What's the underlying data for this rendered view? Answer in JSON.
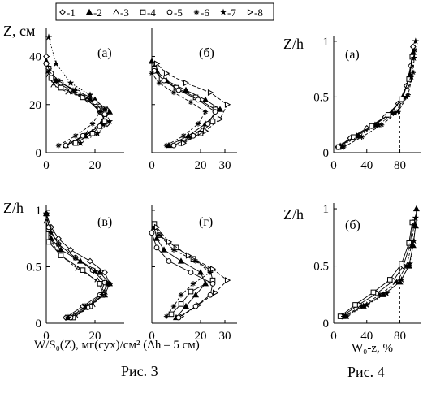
{
  "legend": {
    "items": [
      {
        "num": "-1",
        "marker": "diamond"
      },
      {
        "num": "-2",
        "marker": "triangle-filled"
      },
      {
        "num": "-3",
        "marker": "caret-open"
      },
      {
        "num": "-4",
        "marker": "square"
      },
      {
        "num": "-5",
        "marker": "hexagon"
      },
      {
        "num": "-6",
        "marker": "star"
      },
      {
        "num": "-7",
        "marker": "star-filled"
      },
      {
        "num": "-8",
        "marker": "triangle-right"
      }
    ]
  },
  "fig3": {
    "ylabel_top": "Z, см",
    "ylabel_bottom": "Z/h",
    "xlabel": "W/S₀(Z), мг(сух)/см² (Δh – 5 см)",
    "caption": "Рис. 3",
    "yticks_top": [
      "0",
      "20",
      "40"
    ],
    "yticks_bottom": [
      "0",
      "0.5",
      "1"
    ],
    "xticks_left": [
      "0",
      "20"
    ],
    "xticks_right": [
      "0",
      "20",
      "30"
    ],
    "panel_labels": [
      "(а)",
      "(б)",
      "(в)",
      "(г)"
    ]
  },
  "fig4": {
    "ylabel": "Z/h",
    "xlabel": "W₀-z, %",
    "caption": "Рис. 4",
    "yticks": [
      "0",
      "0.5",
      "1"
    ],
    "xticks": [
      "0",
      "40",
      "80"
    ],
    "panel_labels": [
      "(а)",
      "(б)"
    ]
  },
  "chart_data": [
    {
      "type": "line",
      "panel": "Рис. 3 (а)",
      "ylabel": "Z, см",
      "ylim": [
        0,
        52
      ],
      "xlim": [
        0,
        32
      ],
      "series": [
        {
          "marker": "diamond",
          "x": [
            25,
            22,
            17,
            10,
            3,
            1,
            0
          ],
          "y": [
            12,
            17,
            22,
            26,
            30,
            35,
            40
          ]
        },
        {
          "marker": "triangle-filled",
          "x": [
            8,
            16,
            23,
            26,
            20,
            12,
            4,
            1,
            0
          ],
          "y": [
            3,
            7,
            12,
            17,
            22,
            26,
            30,
            34,
            38
          ]
        },
        {
          "marker": "caret-open",
          "x": [
            10,
            17,
            23,
            25,
            18,
            9,
            3,
            1
          ],
          "y": [
            4,
            8,
            13,
            18,
            22,
            25,
            28,
            32
          ]
        },
        {
          "marker": "square",
          "x": [
            12,
            19,
            24,
            22,
            15,
            6,
            2,
            1
          ],
          "y": [
            4,
            8,
            13,
            18,
            23,
            27,
            31,
            35
          ]
        },
        {
          "marker": "hexagon",
          "x": [
            8,
            15,
            22,
            24,
            20,
            13,
            6,
            2,
            0
          ],
          "y": [
            3,
            7,
            11,
            16,
            21,
            25,
            29,
            33,
            37
          ]
        },
        {
          "marker": "star",
          "x": [
            5,
            12,
            19,
            22,
            18,
            11,
            5,
            1
          ],
          "y": [
            3,
            7,
            12,
            17,
            22,
            26,
            30,
            34
          ]
        },
        {
          "marker": "star-filled",
          "x": [
            14,
            21,
            26,
            24,
            18,
            10,
            4,
            1
          ],
          "y": [
            4,
            8,
            13,
            18,
            24,
            29,
            37,
            48
          ]
        }
      ]
    },
    {
      "type": "line",
      "panel": "Рис. 3 (б)",
      "ylim": [
        0,
        52
      ],
      "xlim": [
        0,
        35
      ],
      "series": [
        {
          "marker": "triangle-filled",
          "x": [
            7,
            15,
            22,
            28,
            22,
            14,
            6,
            2,
            0
          ],
          "y": [
            3,
            7,
            12,
            18,
            22,
            26,
            30,
            34,
            38
          ]
        },
        {
          "marker": "square",
          "x": [
            12,
            20,
            25,
            26,
            18,
            10,
            4,
            1
          ],
          "y": [
            4,
            8,
            13,
            18,
            23,
            27,
            31,
            35
          ]
        },
        {
          "marker": "triangle-right",
          "x": [
            13,
            22,
            28,
            31,
            24,
            14,
            6,
            2
          ],
          "y": [
            4,
            9,
            14,
            20,
            25,
            29,
            33,
            37
          ]
        },
        {
          "marker": "hexagon",
          "x": [
            9,
            17,
            23,
            26,
            19,
            11,
            5,
            1
          ],
          "y": [
            3,
            7,
            12,
            17,
            22,
            26,
            30,
            34
          ]
        },
        {
          "marker": "star",
          "x": [
            6,
            13,
            19,
            22,
            16,
            9,
            3,
            0
          ],
          "y": [
            3,
            7,
            12,
            17,
            21,
            25,
            29,
            33
          ]
        }
      ]
    },
    {
      "type": "line",
      "panel": "Рис. 3 (в)",
      "ylabel": "Z/h",
      "ylim": [
        0,
        1.05
      ],
      "xlim": [
        0,
        32
      ],
      "series": [
        {
          "marker": "diamond",
          "x": [
            8,
            15,
            22,
            26,
            24,
            18,
            10,
            5,
            2,
            0
          ],
          "y": [
            0.05,
            0.15,
            0.25,
            0.35,
            0.45,
            0.55,
            0.65,
            0.75,
            0.85,
            0.97
          ]
        },
        {
          "marker": "triangle-filled",
          "x": [
            9,
            17,
            24,
            26,
            22,
            14,
            6,
            2,
            0
          ],
          "y": [
            0.05,
            0.15,
            0.25,
            0.35,
            0.45,
            0.55,
            0.65,
            0.75,
            0.97
          ]
        },
        {
          "marker": "caret-open",
          "x": [
            12,
            19,
            24,
            21,
            13,
            6,
            2,
            0
          ],
          "y": [
            0.06,
            0.16,
            0.27,
            0.38,
            0.48,
            0.6,
            0.72,
            0.9
          ]
        },
        {
          "marker": "square",
          "x": [
            11,
            18,
            23,
            22,
            15,
            6,
            1,
            1
          ],
          "y": [
            0.05,
            0.15,
            0.25,
            0.35,
            0.47,
            0.6,
            0.72,
            0.83
          ]
        },
        {
          "marker": "hexagon",
          "x": [
            10,
            17,
            22,
            24,
            19,
            12,
            5,
            1
          ],
          "y": [
            0.05,
            0.14,
            0.25,
            0.36,
            0.47,
            0.58,
            0.7,
            0.85
          ]
        },
        {
          "marker": "star-filled",
          "x": [
            9,
            16,
            23,
            25,
            20,
            12,
            5,
            2,
            0
          ],
          "y": [
            0.05,
            0.15,
            0.25,
            0.35,
            0.46,
            0.58,
            0.7,
            0.8,
            0.97
          ]
        }
      ]
    },
    {
      "type": "line",
      "panel": "Рис. 3 (г)",
      "ylim": [
        0,
        1.05
      ],
      "xlim": [
        0,
        35
      ],
      "series": [
        {
          "marker": "triangle-filled",
          "x": [
            10,
            14,
            18,
            22,
            20,
            12,
            5,
            2,
            1
          ],
          "y": [
            0.05,
            0.15,
            0.25,
            0.35,
            0.45,
            0.55,
            0.65,
            0.75,
            0.85
          ]
        },
        {
          "marker": "square",
          "x": [
            8,
            12,
            16,
            25,
            24,
            17,
            10,
            3,
            1
          ],
          "y": [
            0.08,
            0.17,
            0.28,
            0.38,
            0.47,
            0.57,
            0.67,
            0.78,
            0.88
          ]
        },
        {
          "marker": "triangle-right",
          "x": [
            12,
            19,
            26,
            31,
            25,
            15,
            7,
            2
          ],
          "y": [
            0.06,
            0.16,
            0.27,
            0.38,
            0.48,
            0.6,
            0.72,
            0.85
          ]
        },
        {
          "marker": "hexagon",
          "x": [
            11,
            18,
            24,
            25,
            16,
            7,
            2,
            0
          ],
          "y": [
            0.05,
            0.15,
            0.25,
            0.35,
            0.45,
            0.55,
            0.67,
            0.8
          ]
        },
        {
          "marker": "star",
          "x": [
            6,
            9,
            12,
            17,
            24,
            18,
            9,
            3
          ],
          "y": [
            0.06,
            0.15,
            0.25,
            0.35,
            0.45,
            0.55,
            0.65,
            0.78
          ]
        }
      ]
    },
    {
      "type": "line",
      "panel": "Рис. 4 (а)",
      "ylabel": "Z/h",
      "xlabel": "W₀-z, %",
      "ylim": [
        0,
        1.05
      ],
      "xlim": [
        0,
        105
      ],
      "series": [
        {
          "marker": "diamond",
          "x": [
            5,
            20,
            40,
            62,
            78,
            88,
            93,
            96
          ],
          "y": [
            0.05,
            0.13,
            0.22,
            0.32,
            0.44,
            0.6,
            0.78,
            0.95
          ]
        },
        {
          "marker": "triangle-filled",
          "x": [
            8,
            28,
            50,
            70,
            84,
            92,
            96
          ],
          "y": [
            0.06,
            0.15,
            0.25,
            0.36,
            0.5,
            0.7,
            0.9
          ]
        },
        {
          "marker": "square",
          "x": [
            6,
            24,
            46,
            66,
            82,
            91,
            95
          ],
          "y": [
            0.05,
            0.14,
            0.24,
            0.34,
            0.48,
            0.66,
            0.86
          ]
        },
        {
          "marker": "star",
          "x": [
            12,
            34,
            58,
            78,
            90,
            96,
            98
          ],
          "y": [
            0.05,
            0.14,
            0.25,
            0.37,
            0.52,
            0.72,
            0.92
          ]
        },
        {
          "marker": "star-filled",
          "x": [
            10,
            30,
            54,
            74,
            88,
            94,
            97,
            99
          ],
          "y": [
            0.06,
            0.15,
            0.25,
            0.36,
            0.5,
            0.68,
            0.85,
            1.0
          ]
        }
      ]
    },
    {
      "type": "line",
      "panel": "Рис. 4 (б)",
      "ylabel": "Z/h",
      "xlabel": "W₀-z, %",
      "ylim": [
        0,
        1.05
      ],
      "xlim": [
        0,
        105
      ],
      "series": [
        {
          "marker": "diamond",
          "x": [
            10,
            30,
            52,
            72,
            84,
            92,
            96
          ],
          "y": [
            0.06,
            0.16,
            0.26,
            0.37,
            0.5,
            0.68,
            0.88
          ]
        },
        {
          "marker": "triangle-filled",
          "x": [
            14,
            36,
            60,
            80,
            91,
            96,
            99,
            100
          ],
          "y": [
            0.06,
            0.15,
            0.25,
            0.36,
            0.5,
            0.68,
            0.85,
            1.0
          ]
        },
        {
          "marker": "square",
          "x": [
            8,
            26,
            48,
            68,
            82,
            91,
            95
          ],
          "y": [
            0.06,
            0.16,
            0.27,
            0.38,
            0.52,
            0.7,
            0.88
          ]
        },
        {
          "marker": "star",
          "x": [
            12,
            34,
            56,
            76,
            88,
            94,
            97
          ],
          "y": [
            0.06,
            0.15,
            0.25,
            0.36,
            0.5,
            0.68,
            0.86
          ]
        },
        {
          "marker": "star-filled",
          "x": [
            16,
            40,
            64,
            82,
            92,
            97,
            99
          ],
          "y": [
            0.06,
            0.16,
            0.26,
            0.38,
            0.52,
            0.72,
            0.92
          ]
        }
      ]
    }
  ]
}
